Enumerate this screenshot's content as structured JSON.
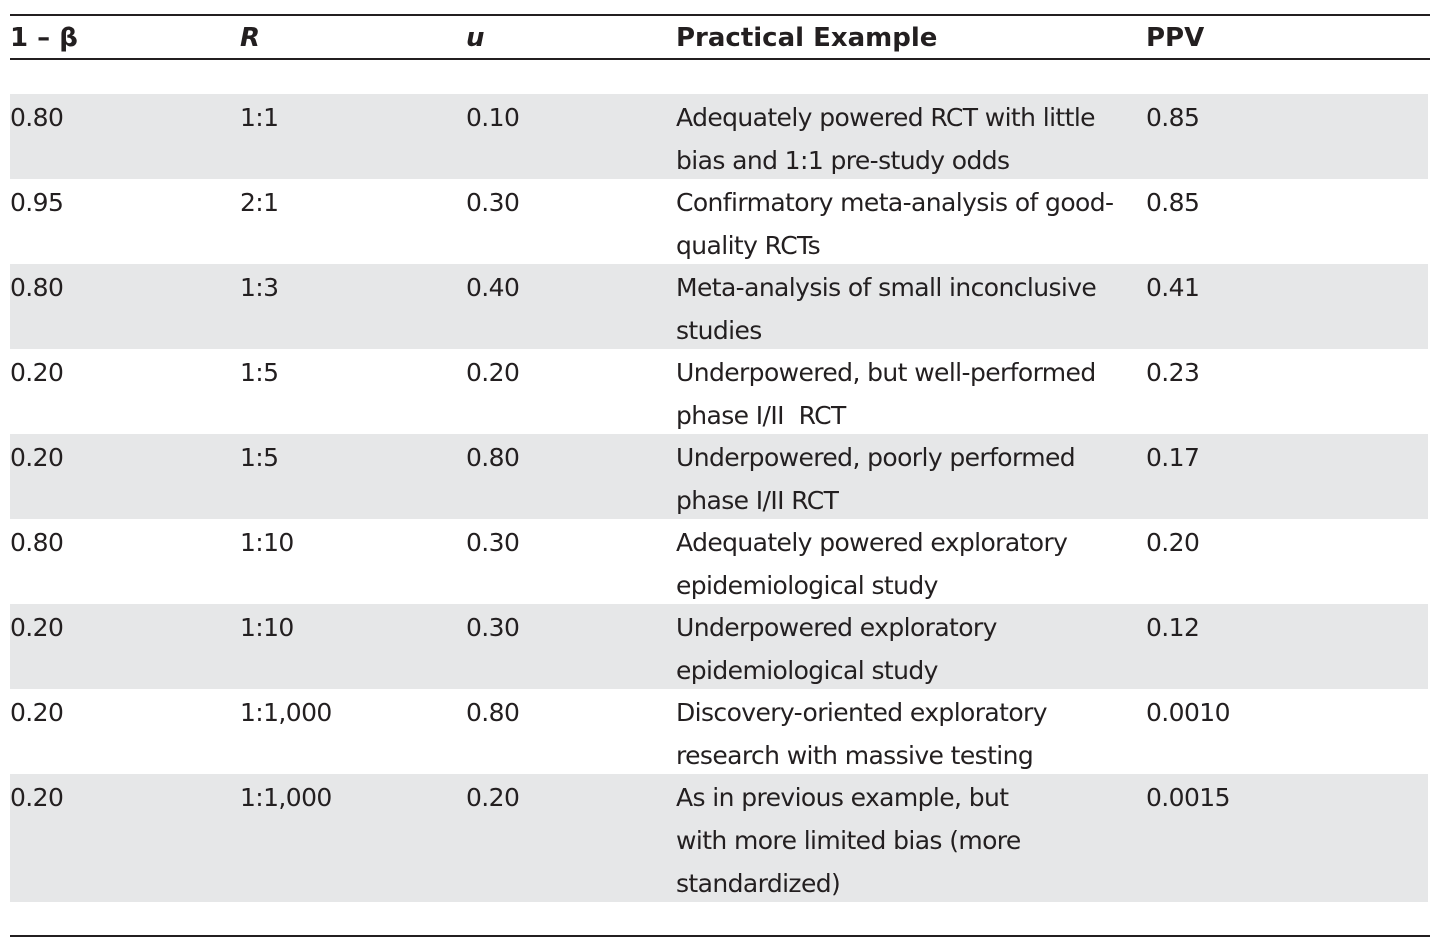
{
  "table": {
    "header": [
      "1 – β",
      "R",
      "u",
      "Practical Example",
      "PPV"
    ],
    "rows": [
      [
        "0.80",
        "1:1",
        "0.10",
        [
          "Adequately powered RCT with little",
          "bias and 1:1 pre-study odds"
        ],
        "0.85"
      ],
      [
        "0.95",
        "2:1",
        "0.30",
        [
          "Confirmatory meta-analysis of good-",
          "quality RCTs"
        ],
        "0.85"
      ],
      [
        "0.80",
        "1:3",
        "0.40",
        [
          "Meta-analysis of small inconclusive",
          "studies"
        ],
        "0.41"
      ],
      [
        "0.20",
        "1:5",
        "0.20",
        [
          "Underpowered, but well-performed",
          "phase I/II  RCT"
        ],
        "0.23"
      ],
      [
        "0.20",
        "1:5",
        "0.80",
        [
          "Underpowered, poorly performed",
          "phase I/II RCT"
        ],
        "0.17"
      ],
      [
        "0.80",
        "1:10",
        "0.30",
        [
          "Adequately powered exploratory",
          "epidemiological study"
        ],
        "0.20"
      ],
      [
        "0.20",
        "1:10",
        "0.30",
        [
          "Underpowered exploratory",
          "epidemiological study"
        ],
        "0.12"
      ],
      [
        "0.20",
        "1:1,000",
        "0.80",
        [
          "Discovery-oriented exploratory",
          "research with massive testing"
        ],
        "0.0010"
      ],
      [
        "0.20",
        "1:1,000",
        "0.20",
        [
          "As in previous example, but",
          "with more limited bias (more",
          "standardized)"
        ],
        "0.0015"
      ]
    ]
  }
}
